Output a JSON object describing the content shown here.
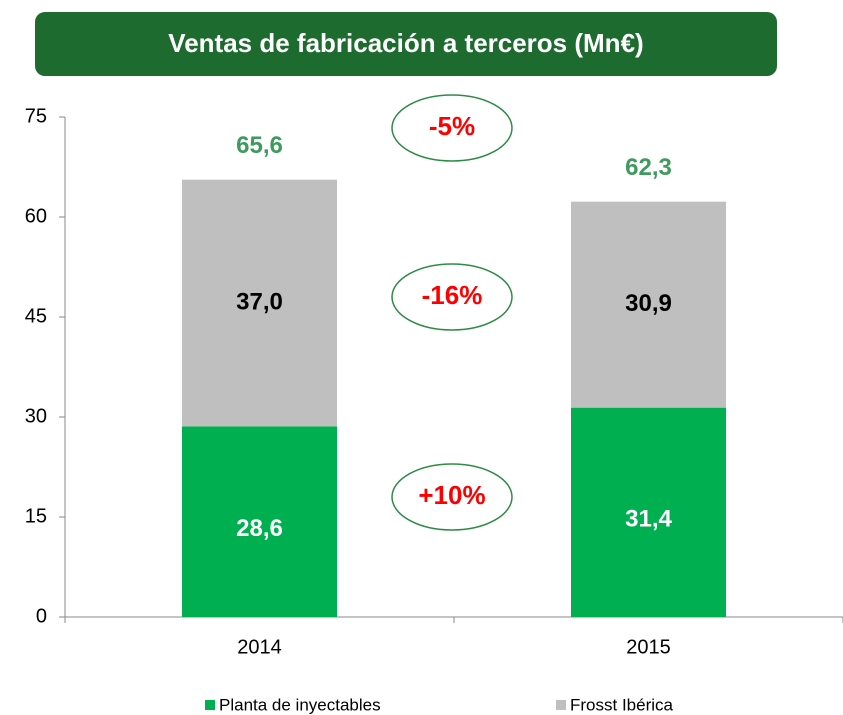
{
  "chart_data": {
    "type": "stacked_bar",
    "title": "Ventas de fabricación a terceros (Mn€)",
    "categories": [
      "2014",
      "2015"
    ],
    "series": [
      {
        "name": "Planta de inyectables",
        "color": "#00b050",
        "values": [
          28.6,
          31.4
        ],
        "value_labels": [
          "28,6",
          "31,4"
        ]
      },
      {
        "name": "Frosst Ibérica",
        "color": "#bfbfbf",
        "values": [
          37.0,
          30.9
        ],
        "value_labels": [
          "37,0",
          "30,9"
        ]
      }
    ],
    "totals": {
      "values": [
        65.6,
        62.3
      ],
      "value_labels": [
        "65,6",
        "62,3"
      ]
    },
    "annotations": [
      "-5%",
      "-16%",
      "+10%"
    ],
    "ylim": [
      0,
      75
    ],
    "yticks": [
      0,
      15,
      30,
      45,
      60,
      75
    ],
    "legend": "bottom"
  }
}
